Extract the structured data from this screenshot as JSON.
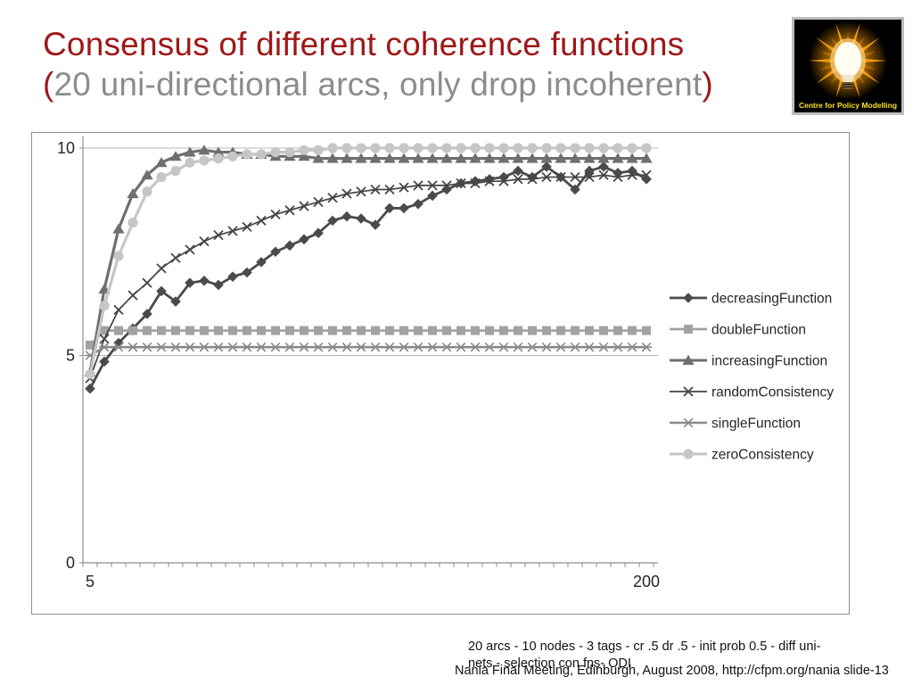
{
  "title": {
    "line1": "Consensus of different coherence functions",
    "line2_open": "(",
    "line2_text": "20 uni-directional arcs, only drop incoherent",
    "line2_close": ")",
    "line1_color": "#9e1717",
    "line2_color": "#8c8c8c"
  },
  "logo": {
    "caption": "Centre for Policy Modelling",
    "caption_color": "#ffe11a",
    "background": "#000000",
    "glow_color": "#f59a00"
  },
  "caption": {
    "line1": "20 arcs - 10 nodes - 3 tags - cr .5 dr .5 - init prob 0.5 - diff uni-",
    "line2": "nets - selection con fns- ODI"
  },
  "footer": "Nania Final Meeting, Edinburgh, August 2008, http://cfpm.org/nania slide-13",
  "chart_data": {
    "type": "line",
    "x": [
      5,
      10,
      15,
      20,
      25,
      30,
      35,
      40,
      45,
      50,
      55,
      60,
      65,
      70,
      75,
      80,
      85,
      90,
      95,
      100,
      105,
      110,
      115,
      120,
      125,
      130,
      135,
      140,
      145,
      150,
      155,
      160,
      165,
      170,
      175,
      180,
      185,
      190,
      195,
      200
    ],
    "ylim": [
      0,
      10
    ],
    "yticks": [
      {
        "v": 0,
        "label": "0"
      },
      {
        "v": 5,
        "label": "5"
      },
      {
        "v": 10,
        "label": "10"
      }
    ],
    "xtick_labels": [
      {
        "index": 0,
        "label": "5"
      },
      {
        "index": 39,
        "label": "200"
      }
    ],
    "gridlines_at": [
      5,
      10
    ],
    "grid_color": "#b8b8b8",
    "axis_color": "#8f8f8f",
    "tick_label_color": "#262626",
    "legend_position": "right",
    "legend_text_color": "#262626",
    "series": [
      {
        "name": "decreasingFunction",
        "marker": "diamond",
        "color": "#4a4a4a",
        "width": 2.8,
        "values": [
          4.2,
          4.85,
          5.3,
          5.65,
          6.0,
          6.55,
          6.3,
          6.75,
          6.8,
          6.7,
          6.9,
          7.0,
          7.25,
          7.5,
          7.65,
          7.8,
          7.95,
          8.25,
          8.35,
          8.3,
          8.15,
          8.55,
          8.55,
          8.65,
          8.85,
          9.0,
          9.15,
          9.2,
          9.25,
          9.3,
          9.45,
          9.3,
          9.55,
          9.3,
          9.0,
          9.45,
          9.55,
          9.4,
          9.45,
          9.25
        ]
      },
      {
        "name": "doubleFunction",
        "marker": "square",
        "color": "#a2a2a2",
        "width": 2.8,
        "values": [
          5.25,
          5.6,
          5.6,
          5.6,
          5.6,
          5.6,
          5.6,
          5.6,
          5.6,
          5.6,
          5.6,
          5.6,
          5.6,
          5.6,
          5.6,
          5.6,
          5.6,
          5.6,
          5.6,
          5.6,
          5.6,
          5.6,
          5.6,
          5.6,
          5.6,
          5.6,
          5.6,
          5.6,
          5.6,
          5.6,
          5.6,
          5.6,
          5.6,
          5.6,
          5.6,
          5.6,
          5.6,
          5.6,
          5.6,
          5.6
        ]
      },
      {
        "name": "increasingFunction",
        "marker": "triangle",
        "color": "#6f6f6f",
        "width": 3.2,
        "values": [
          4.6,
          6.6,
          8.05,
          8.9,
          9.35,
          9.65,
          9.8,
          9.9,
          9.95,
          9.9,
          9.9,
          9.85,
          9.85,
          9.8,
          9.8,
          9.8,
          9.75,
          9.75,
          9.75,
          9.75,
          9.75,
          9.75,
          9.75,
          9.75,
          9.75,
          9.75,
          9.75,
          9.75,
          9.75,
          9.75,
          9.75,
          9.75,
          9.75,
          9.75,
          9.75,
          9.75,
          9.75,
          9.75,
          9.75,
          9.75
        ]
      },
      {
        "name": "randomConsistency",
        "marker": "x",
        "color": "#454545",
        "width": 1.7,
        "values": [
          4.45,
          5.4,
          6.1,
          6.45,
          6.75,
          7.1,
          7.35,
          7.55,
          7.75,
          7.9,
          8.0,
          8.1,
          8.25,
          8.4,
          8.5,
          8.6,
          8.7,
          8.8,
          8.9,
          8.95,
          9.0,
          9.0,
          9.05,
          9.1,
          9.1,
          9.1,
          9.15,
          9.15,
          9.2,
          9.2,
          9.25,
          9.25,
          9.3,
          9.3,
          9.3,
          9.3,
          9.35,
          9.3,
          9.35,
          9.35
        ]
      },
      {
        "name": "singleFunction",
        "marker": "star",
        "color": "#8a8a8a",
        "width": 2.6,
        "values": [
          5.0,
          5.2,
          5.2,
          5.2,
          5.2,
          5.2,
          5.2,
          5.2,
          5.2,
          5.2,
          5.2,
          5.2,
          5.2,
          5.2,
          5.2,
          5.2,
          5.2,
          5.2,
          5.2,
          5.2,
          5.2,
          5.2,
          5.2,
          5.2,
          5.2,
          5.2,
          5.2,
          5.2,
          5.2,
          5.2,
          5.2,
          5.2,
          5.2,
          5.2,
          5.2,
          5.2,
          5.2,
          5.2,
          5.2,
          5.2
        ]
      },
      {
        "name": "zeroConsistency",
        "marker": "circle",
        "color": "#c6c6c6",
        "width": 3.2,
        "values": [
          4.55,
          6.2,
          7.4,
          8.2,
          8.95,
          9.3,
          9.45,
          9.65,
          9.7,
          9.75,
          9.8,
          9.85,
          9.85,
          9.9,
          9.9,
          9.95,
          9.95,
          10.0,
          10.0,
          10.0,
          10.0,
          10.0,
          10.0,
          10.0,
          10.0,
          10.0,
          10.0,
          10.0,
          10.0,
          10.0,
          10.0,
          10.0,
          10.0,
          10.0,
          10.0,
          10.0,
          10.0,
          10.0,
          10.0,
          10.0
        ]
      }
    ]
  }
}
